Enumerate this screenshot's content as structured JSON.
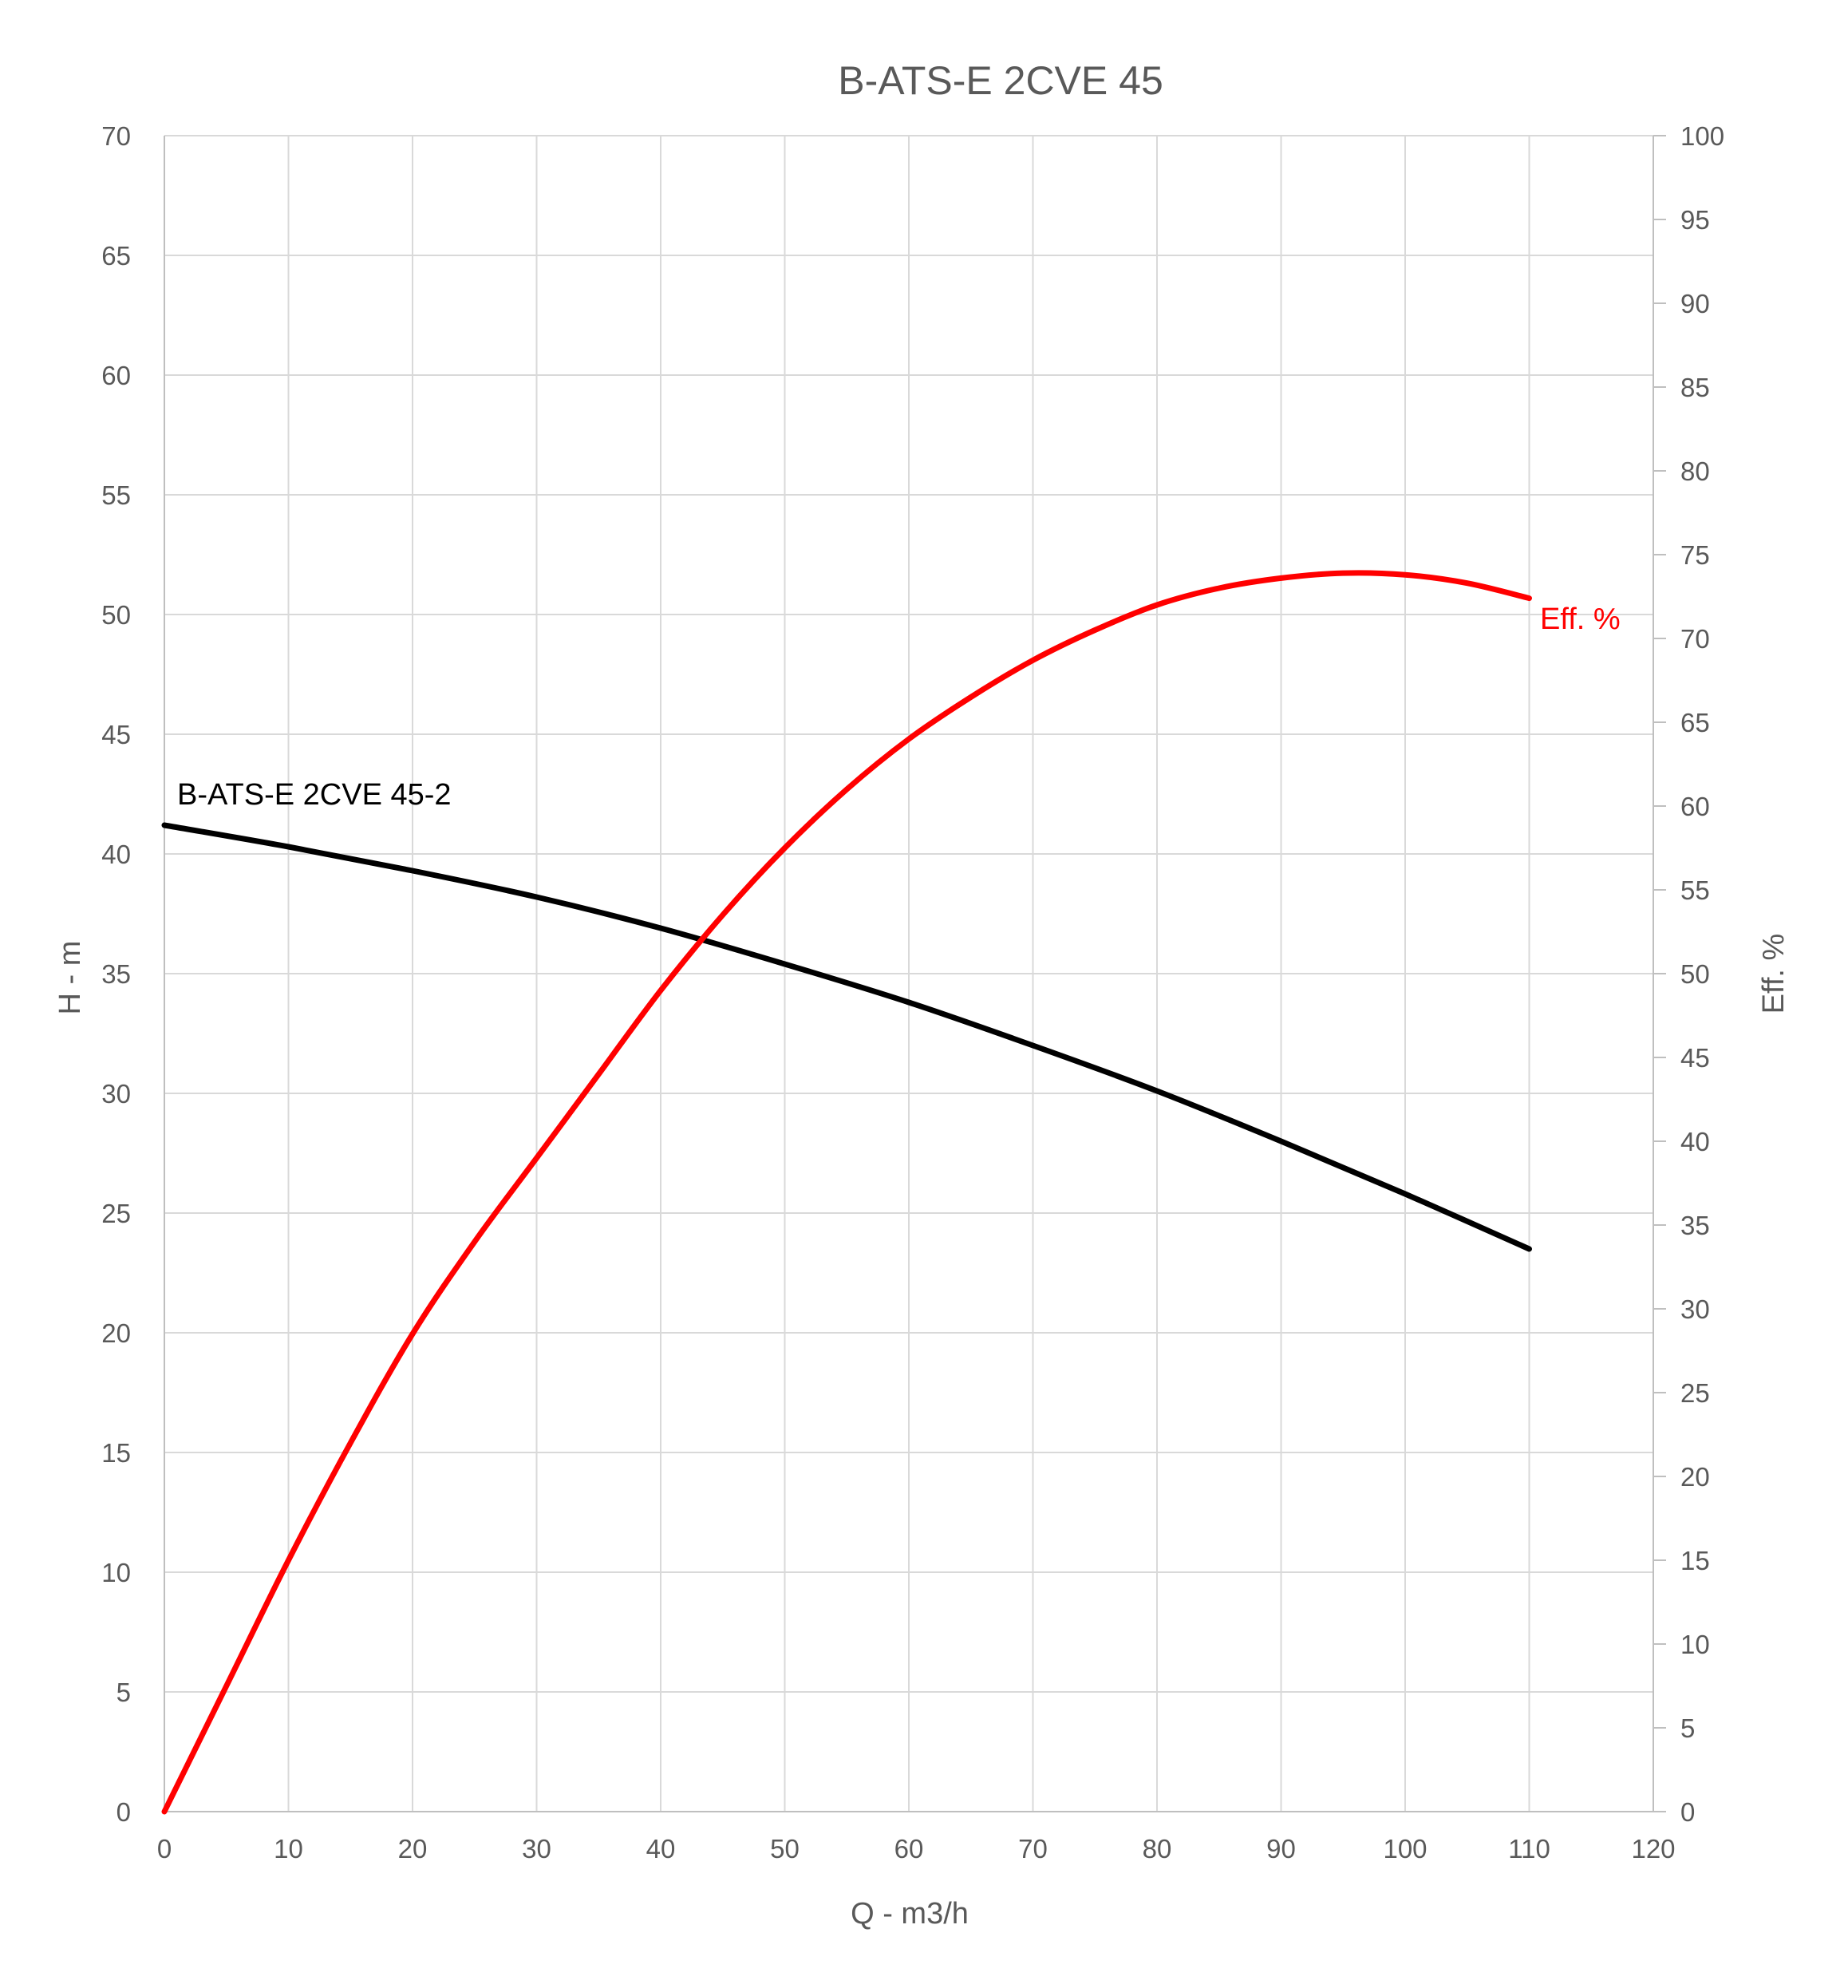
{
  "chart_data": {
    "type": "line",
    "title": "B-ATS-E 2CVE 45",
    "xlabel": "Q - m3/h",
    "ylabel": "H - m",
    "y2label": "Eff. %",
    "xlim": [
      0,
      120
    ],
    "ylim": [
      0,
      70
    ],
    "y2lim": [
      0,
      100
    ],
    "x_ticks": [
      "0",
      "10",
      "20",
      "30",
      "40",
      "50",
      "60",
      "70",
      "80",
      "90",
      "100",
      "110",
      "120"
    ],
    "y_ticks": [
      "0",
      "5",
      "10",
      "15",
      "20",
      "25",
      "30",
      "35",
      "40",
      "45",
      "50",
      "55",
      "60",
      "65",
      "70"
    ],
    "y2_ticks": [
      "0",
      "5",
      "10",
      "15",
      "20",
      "25",
      "30",
      "35",
      "40",
      "45",
      "50",
      "55",
      "60",
      "65",
      "70",
      "75",
      "80",
      "85",
      "90",
      "95",
      "100"
    ],
    "grid": true,
    "series": [
      {
        "name": "B-ATS-E 2CVE 45-2",
        "axis": "left",
        "color": "#000000",
        "x": [
          0,
          10,
          20,
          30,
          40,
          50,
          60,
          70,
          80,
          90,
          100,
          110
        ],
        "y": [
          41.2,
          40.3,
          39.3,
          38.2,
          36.9,
          35.4,
          33.8,
          32.0,
          30.1,
          28.0,
          25.8,
          23.5
        ]
      },
      {
        "name": "Eff. %",
        "axis": "right",
        "color": "#ff0000",
        "x": [
          0,
          5,
          10,
          15,
          20,
          25,
          30,
          35,
          40,
          45,
          50,
          55,
          60,
          65,
          70,
          75,
          80,
          85,
          90,
          95,
          100,
          105,
          110
        ],
        "y": [
          0,
          7.5,
          15,
          22,
          28.5,
          34,
          39,
          44,
          49,
          53.5,
          57.5,
          61,
          64,
          66.5,
          68.7,
          70.5,
          72,
          73,
          73.6,
          73.9,
          73.8,
          73.3,
          72.4
        ]
      }
    ]
  }
}
